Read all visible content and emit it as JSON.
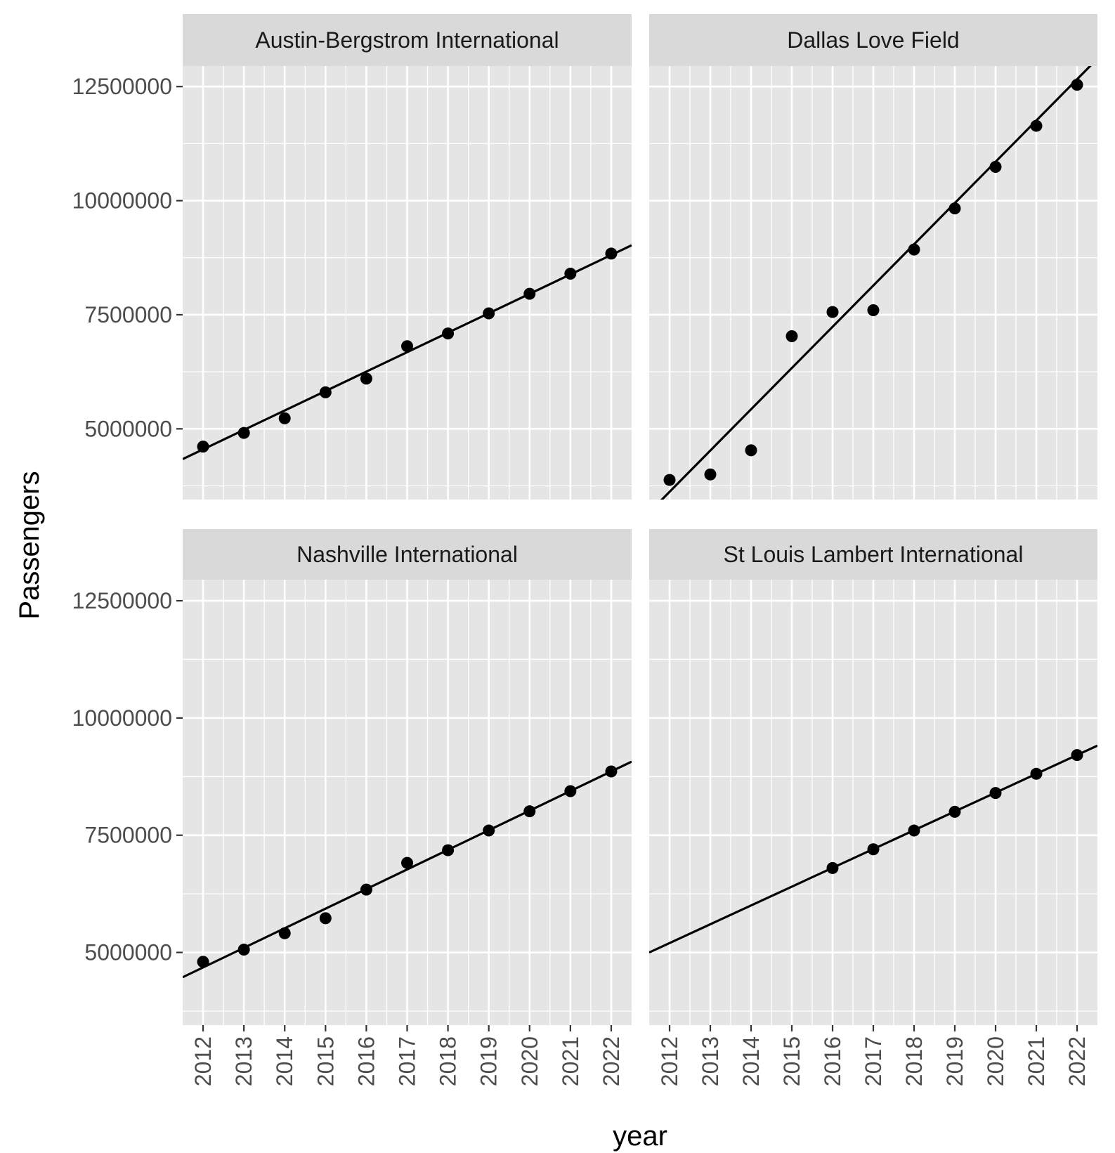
{
  "chart_data": {
    "type": "scatter",
    "xlabel": "year",
    "ylabel": "Passengers",
    "x_ticks": [
      2012,
      2013,
      2014,
      2015,
      2016,
      2017,
      2018,
      2019,
      2020,
      2021,
      2022
    ],
    "y_ticks": [
      5000000,
      7500000,
      10000000,
      12500000
    ],
    "y_tick_labels": [
      "5000000",
      "7500000",
      "10000000",
      "12500000"
    ],
    "xlim": [
      2011.5,
      2022.5
    ],
    "ylim": [
      3450000,
      12950000
    ],
    "grid": true,
    "trend_line": "linear fit per panel",
    "colors": {
      "panel_background": "#e5e5e5",
      "strip_background": "#d9d9d9",
      "grid": "#ffffff",
      "points": "#000000"
    },
    "panels": [
      {
        "title": "Austin-Bergstrom International",
        "points": [
          {
            "x": 2012,
            "y": 4610000
          },
          {
            "x": 2013,
            "y": 4910000
          },
          {
            "x": 2014,
            "y": 5230000
          },
          {
            "x": 2015,
            "y": 5800000
          },
          {
            "x": 2016,
            "y": 6100000
          },
          {
            "x": 2017,
            "y": 6810000
          },
          {
            "x": 2018,
            "y": 7090000
          },
          {
            "x": 2019,
            "y": 7530000
          },
          {
            "x": 2020,
            "y": 7960000
          },
          {
            "x": 2021,
            "y": 8400000
          },
          {
            "x": 2022,
            "y": 8840000
          }
        ],
        "fit": {
          "slope": 426000,
          "at_2012": 4550000
        }
      },
      {
        "title": "Dallas Love Field",
        "points": [
          {
            "x": 2012,
            "y": 3880000
          },
          {
            "x": 2013,
            "y": 4000000
          },
          {
            "x": 2014,
            "y": 4530000
          },
          {
            "x": 2015,
            "y": 7030000
          },
          {
            "x": 2016,
            "y": 7560000
          },
          {
            "x": 2017,
            "y": 7600000
          },
          {
            "x": 2018,
            "y": 8930000
          },
          {
            "x": 2019,
            "y": 9830000
          },
          {
            "x": 2020,
            "y": 10740000
          },
          {
            "x": 2021,
            "y": 11640000
          },
          {
            "x": 2022,
            "y": 12540000
          }
        ],
        "fit": {
          "slope": 904000,
          "at_2012": 3620000
        }
      },
      {
        "title": "Nashville International",
        "points": [
          {
            "x": 2012,
            "y": 4800000
          },
          {
            "x": 2013,
            "y": 5060000
          },
          {
            "x": 2014,
            "y": 5410000
          },
          {
            "x": 2015,
            "y": 5730000
          },
          {
            "x": 2016,
            "y": 6340000
          },
          {
            "x": 2017,
            "y": 6910000
          },
          {
            "x": 2018,
            "y": 7180000
          },
          {
            "x": 2019,
            "y": 7600000
          },
          {
            "x": 2020,
            "y": 8010000
          },
          {
            "x": 2021,
            "y": 8440000
          },
          {
            "x": 2022,
            "y": 8860000
          }
        ],
        "fit": {
          "slope": 418000,
          "at_2012": 4680000
        }
      },
      {
        "title": "St Louis Lambert International",
        "points": [
          {
            "x": 2016,
            "y": 6800000
          },
          {
            "x": 2017,
            "y": 7200000
          },
          {
            "x": 2018,
            "y": 7600000
          },
          {
            "x": 2019,
            "y": 8000000
          },
          {
            "x": 2020,
            "y": 8400000
          },
          {
            "x": 2021,
            "y": 8810000
          },
          {
            "x": 2022,
            "y": 9210000
          }
        ],
        "fit": {
          "slope": 401000,
          "at_2012": 5200000
        }
      }
    ]
  }
}
